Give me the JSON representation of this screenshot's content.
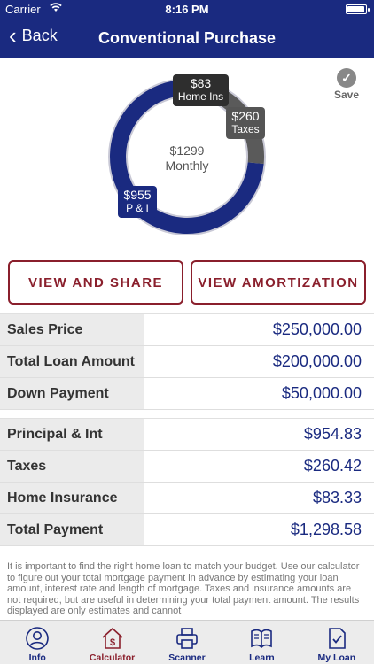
{
  "status_bar": {
    "carrier": "Carrier",
    "time": "8:16 PM"
  },
  "nav": {
    "back_label": "Back",
    "title": "Conventional Purchase"
  },
  "save_label": "Save",
  "donut": {
    "center_amount": "$1299",
    "center_label": "Monthly",
    "segments": [
      {
        "name": "P & I",
        "amount": "$955",
        "value": 954.83,
        "color": "#1a2a80"
      },
      {
        "name": "Taxes",
        "amount": "$260",
        "value": 260.42,
        "color": "#5a5a5a"
      },
      {
        "name": "Home Ins",
        "amount": "$83",
        "value": 83.33,
        "color": "#2e2e2e"
      }
    ]
  },
  "buttons": {
    "share": "VIEW AND SHARE",
    "amortization": "VIEW AMORTIZATION"
  },
  "loan_table": [
    {
      "label": "Sales Price",
      "value": "$250,000.00"
    },
    {
      "label": "Total Loan Amount",
      "value": "$200,000.00"
    },
    {
      "label": "Down Payment",
      "value": "$50,000.00"
    }
  ],
  "payment_table": [
    {
      "label": "Principal & Int",
      "value": "$954.83"
    },
    {
      "label": "Taxes",
      "value": "$260.42"
    },
    {
      "label": "Home Insurance",
      "value": "$83.33"
    },
    {
      "label": "Total Payment",
      "value": "$1,298.58"
    }
  ],
  "disclaimer": "It is important to find the right home loan to match your budget. Use our calculator to figure out your total mortgage payment in advance by estimating your loan amount, interest rate and length of mortgage. Taxes and insurance amounts are not required, but are useful in determining your total payment amount. The results displayed are only estimates and cannot",
  "tabs": [
    {
      "label": "Info",
      "icon": "person-icon"
    },
    {
      "label": "Calculator",
      "icon": "house-dollar-icon",
      "active": true
    },
    {
      "label": "Scanner",
      "icon": "printer-icon"
    },
    {
      "label": "Learn",
      "icon": "book-icon"
    },
    {
      "label": "My Loan",
      "icon": "document-check-icon"
    }
  ]
}
